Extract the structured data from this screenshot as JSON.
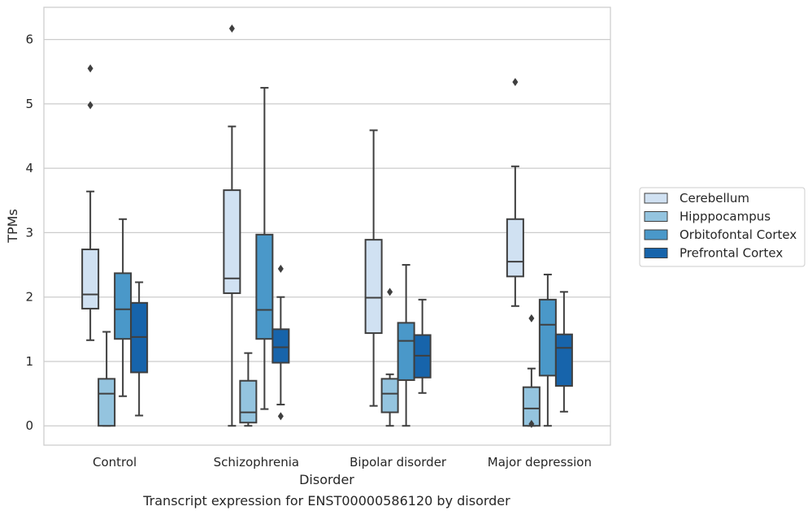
{
  "chart_data": {
    "type": "box",
    "title": "",
    "caption": "Transcript expression for ENST00000586120 by disorder",
    "xlabel": "Disorder",
    "ylabel": "TPMs",
    "ylim": [
      -0.3,
      6.5
    ],
    "yticks": [
      0,
      1,
      2,
      3,
      4,
      5,
      6
    ],
    "grid": "horizontal",
    "legend_position": "right",
    "categories": [
      "Control",
      "Schizophrenia",
      "Bipolar disorder",
      "Major depression"
    ],
    "series": [
      {
        "name": "Cerebellum",
        "color": "#d0e1f2",
        "boxes": [
          {
            "whisker_low": 1.33,
            "q1": 1.82,
            "median": 2.04,
            "q3": 2.74,
            "whisker_high": 3.64,
            "outliers": [
              4.98,
              5.55
            ]
          },
          {
            "whisker_low": 0.0,
            "q1": 2.06,
            "median": 2.29,
            "q3": 3.66,
            "whisker_high": 4.65,
            "outliers": [
              6.17
            ]
          },
          {
            "whisker_low": 0.31,
            "q1": 1.44,
            "median": 1.99,
            "q3": 2.89,
            "whisker_high": 4.59,
            "outliers": []
          },
          {
            "whisker_low": 1.86,
            "q1": 2.32,
            "median": 2.55,
            "q3": 3.21,
            "whisker_high": 4.03,
            "outliers": [
              5.34
            ]
          }
        ]
      },
      {
        "name": "Hipppocampus",
        "color": "#94c4df",
        "boxes": [
          {
            "whisker_low": 0.0,
            "q1": 0.0,
            "median": 0.5,
            "q3": 0.73,
            "whisker_high": 1.46,
            "outliers": []
          },
          {
            "whisker_low": 0.0,
            "q1": 0.05,
            "median": 0.21,
            "q3": 0.7,
            "whisker_high": 1.13,
            "outliers": []
          },
          {
            "whisker_low": 0.0,
            "q1": 0.21,
            "median": 0.5,
            "q3": 0.73,
            "whisker_high": 0.8,
            "outliers": [
              2.08
            ]
          },
          {
            "whisker_low": 0.0,
            "q1": 0.0,
            "median": 0.27,
            "q3": 0.6,
            "whisker_high": 0.89,
            "outliers": [
              0.03,
              1.67
            ]
          }
        ]
      },
      {
        "name": "Orbitofontal Cortex",
        "color": "#4a98c9",
        "boxes": [
          {
            "whisker_low": 0.46,
            "q1": 1.35,
            "median": 1.81,
            "q3": 2.37,
            "whisker_high": 3.21,
            "outliers": []
          },
          {
            "whisker_low": 0.26,
            "q1": 1.35,
            "median": 1.8,
            "q3": 2.97,
            "whisker_high": 5.25,
            "outliers": []
          },
          {
            "whisker_low": 0.0,
            "q1": 0.71,
            "median": 1.32,
            "q3": 1.6,
            "whisker_high": 2.5,
            "outliers": []
          },
          {
            "whisker_low": 0.0,
            "q1": 0.78,
            "median": 1.57,
            "q3": 1.96,
            "whisker_high": 2.35,
            "outliers": []
          }
        ]
      },
      {
        "name": "Prefrontal Cortex",
        "color": "#1764ab",
        "boxes": [
          {
            "whisker_low": 0.16,
            "q1": 0.83,
            "median": 1.38,
            "q3": 1.91,
            "whisker_high": 2.23,
            "outliers": []
          },
          {
            "whisker_low": 0.33,
            "q1": 0.98,
            "median": 1.22,
            "q3": 1.5,
            "whisker_high": 2.0,
            "outliers": [
              0.15,
              2.44
            ]
          },
          {
            "whisker_low": 0.51,
            "q1": 0.75,
            "median": 1.09,
            "q3": 1.41,
            "whisker_high": 1.96,
            "outliers": []
          },
          {
            "whisker_low": 0.22,
            "q1": 0.62,
            "median": 1.21,
            "q3": 1.42,
            "whisker_high": 2.08,
            "outliers": []
          }
        ]
      }
    ]
  }
}
